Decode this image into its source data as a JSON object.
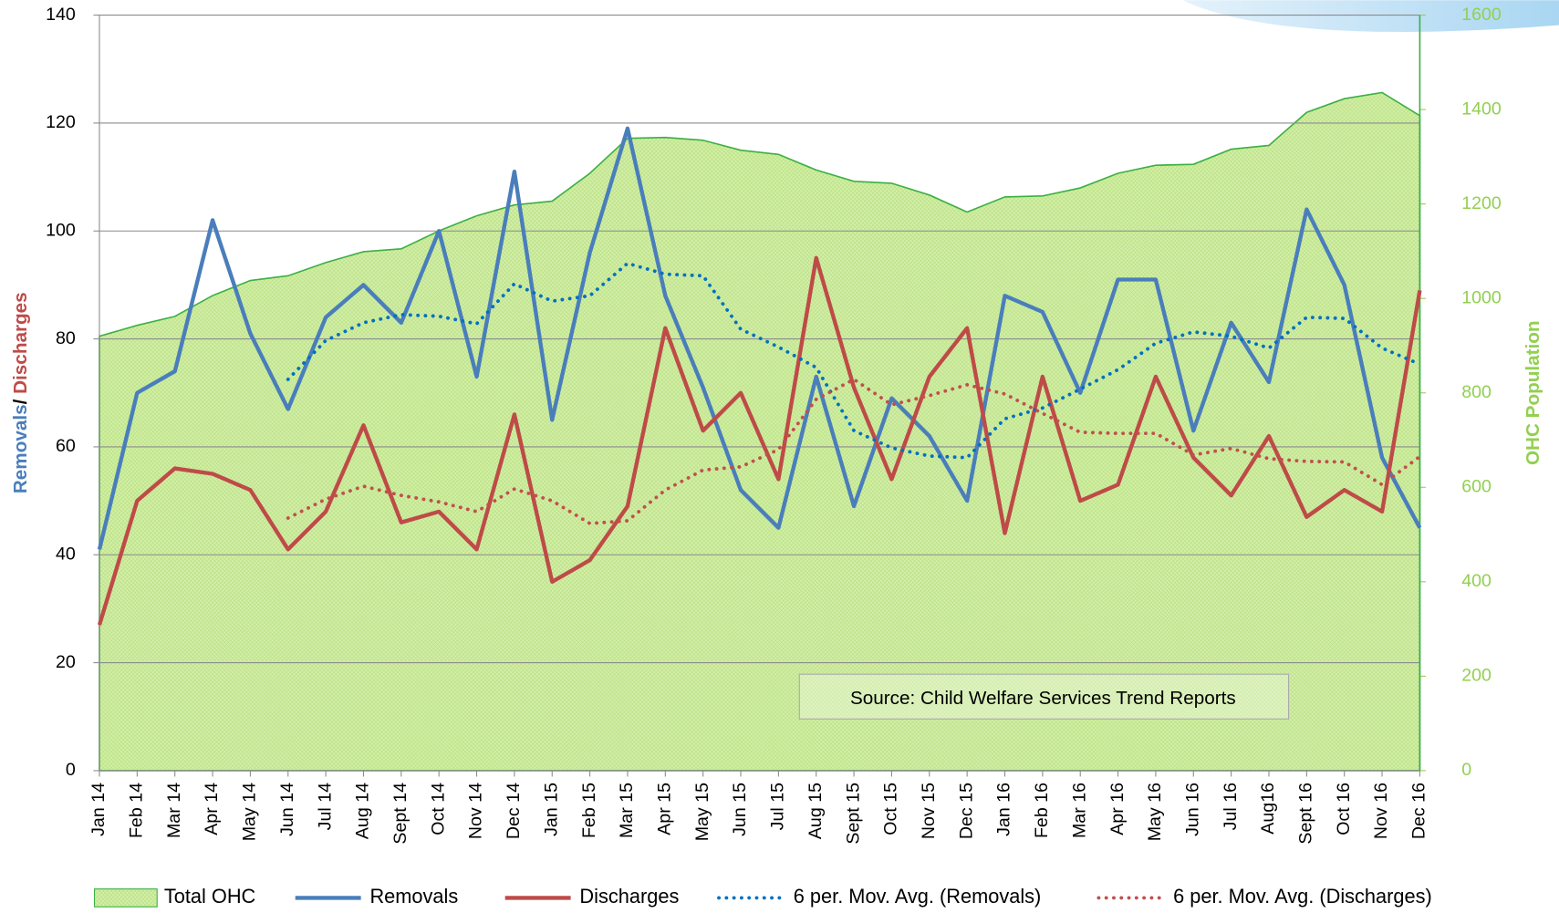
{
  "chart_data": {
    "type": "line",
    "y_label_parts": [
      "Removals",
      "/ ",
      "Discharges"
    ],
    "y2_label": "OHC Population",
    "annotation": "Source:  Child Welfare Services Trend Reports",
    "categories": [
      "Jan 14",
      "Feb 14",
      "Mar 14",
      "Apr 14",
      "May 14",
      "Jun 14",
      "Jul 14",
      "Aug 14",
      "Sept 14",
      "Oct 14",
      "Nov 14",
      "Dec 14",
      "Jan 15",
      "Feb 15",
      "Mar 15",
      "Apr 15",
      "May 15",
      "Jun 15",
      "Jul 15",
      "Aug 15",
      "Sept 15",
      "Oct 15",
      "Nov 15",
      "Dec 15",
      "Jan 16",
      "Feb 16",
      "Mar 16",
      "Apr 16",
      "May 16",
      "Jun 16",
      "Jul 16",
      "Aug16",
      "Sept 16",
      "Oct 16",
      "Nov 16",
      "Dec 16"
    ],
    "ylim": [
      0,
      140
    ],
    "yticks": [
      0,
      20,
      40,
      60,
      80,
      100,
      120,
      140
    ],
    "y2lim": [
      0,
      1600
    ],
    "y2ticks": [
      0,
      200,
      400,
      600,
      800,
      1000,
      1200,
      1400,
      1600
    ],
    "grid": true,
    "series": [
      {
        "name": "Total OHC",
        "style": "area",
        "axis": "y2",
        "color": "#3cb043",
        "fill": "#d4efab",
        "values": [
          920,
          943,
          962,
          1006,
          1038,
          1048,
          1076,
          1099,
          1105,
          1143,
          1175,
          1198,
          1206,
          1265,
          1339,
          1341,
          1335,
          1314,
          1305,
          1272,
          1248,
          1244,
          1219,
          1183,
          1215,
          1217,
          1234,
          1265,
          1282,
          1284,
          1316,
          1324,
          1394,
          1423,
          1436,
          1387
        ]
      },
      {
        "name": "Removals",
        "style": "solid",
        "color": "#4a7ebb",
        "values": [
          41,
          70,
          74,
          102,
          81,
          67,
          84,
          90,
          83,
          100,
          73,
          111,
          65,
          96,
          119,
          88,
          71,
          52,
          45,
          73,
          49,
          69,
          62,
          50,
          88,
          85,
          70,
          91,
          91,
          63,
          83,
          72,
          104,
          90,
          58,
          45
        ]
      },
      {
        "name": "Discharges",
        "style": "solid",
        "color": "#be4b48",
        "values": [
          27,
          50,
          56,
          55,
          52,
          41,
          48,
          64,
          46,
          48,
          41,
          66,
          35,
          39,
          49,
          82,
          63,
          70,
          54,
          95,
          71,
          54,
          73,
          82,
          44,
          73,
          50,
          53,
          73,
          58,
          51,
          62,
          47,
          52,
          48,
          89
        ]
      },
      {
        "name": "6 per. Mov. Avg. (Removals)",
        "style": "dotted",
        "color": "#0070c0",
        "values": [
          null,
          null,
          null,
          null,
          null,
          72.5,
          79.7,
          83.0,
          84.5,
          84.2,
          82.8,
          90.2,
          87.0,
          88.0,
          94.0,
          92.0,
          91.7,
          81.8,
          78.5,
          74.7,
          63.0,
          59.8,
          58.3,
          58.0,
          65.2,
          67.2,
          70.7,
          74.3,
          79.2,
          81.3,
          80.5,
          78.3,
          84.0,
          83.8,
          78.3,
          75.3
        ]
      },
      {
        "name": "6 per. Mov. Avg. (Discharges)",
        "style": "dotted",
        "color": "#c0504d",
        "values": [
          null,
          null,
          null,
          null,
          null,
          46.8,
          50.3,
          52.7,
          51.0,
          49.8,
          48.0,
          52.2,
          50.0,
          45.8,
          46.3,
          52.0,
          55.7,
          56.3,
          59.5,
          68.8,
          72.5,
          67.8,
          69.5,
          71.5,
          69.8,
          66.2,
          62.7,
          62.5,
          62.5,
          58.5,
          59.7,
          57.8,
          57.3,
          57.2,
          53.0,
          58.2
        ]
      }
    ]
  }
}
